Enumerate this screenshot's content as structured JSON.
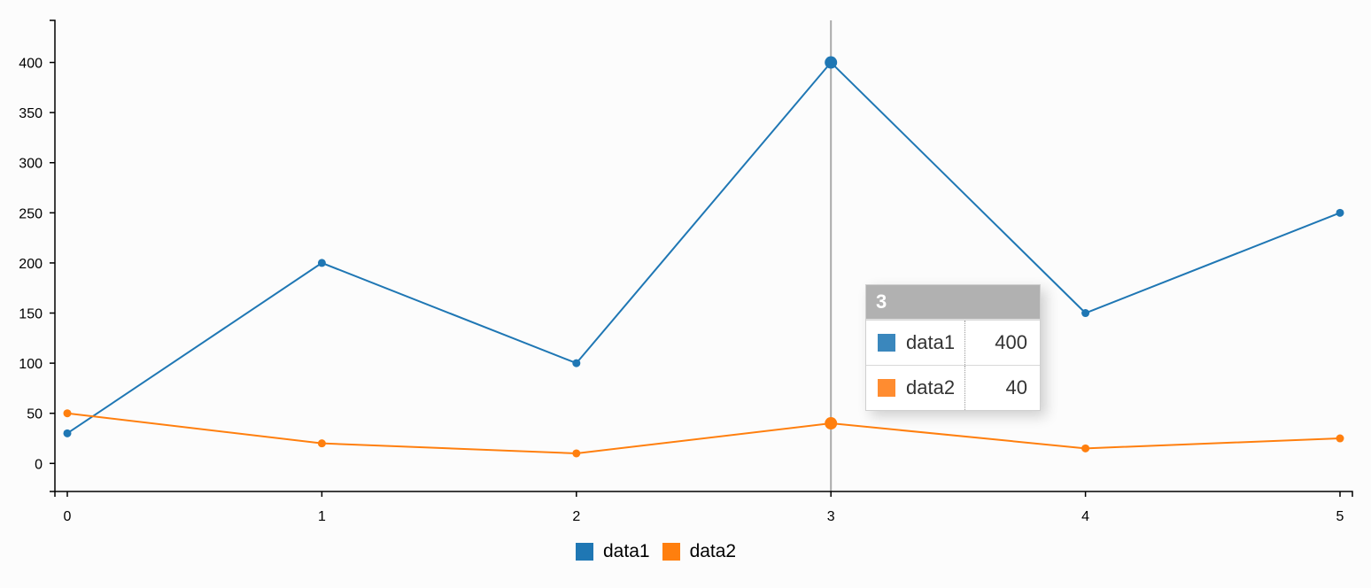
{
  "chart_data": {
    "type": "line",
    "x": [
      0,
      1,
      2,
      3,
      4,
      5
    ],
    "series": [
      {
        "name": "data1",
        "color": "#1f77b4",
        "values": [
          30,
          200,
          100,
          400,
          150,
          250
        ]
      },
      {
        "name": "data2",
        "color": "#ff7f0e",
        "values": [
          50,
          20,
          10,
          40,
          15,
          25
        ]
      }
    ],
    "yticks": [
      0,
      50,
      100,
      150,
      200,
      250,
      300,
      350,
      400
    ],
    "xticks": [
      0,
      1,
      2,
      3,
      4,
      5
    ],
    "ylim": [
      -28,
      442
    ],
    "xlim": [
      -0.05,
      5.05
    ],
    "grid": false,
    "legend": "bottom-center",
    "focus_x": 3
  },
  "tooltip": {
    "title": "3",
    "rows": [
      {
        "name": "data1",
        "value": "400",
        "color": "#3a87bd"
      },
      {
        "name": "data2",
        "value": "40",
        "color": "#ff8c30"
      }
    ]
  },
  "legend": {
    "items": [
      {
        "name": "data1",
        "color": "#1f77b4"
      },
      {
        "name": "data2",
        "color": "#ff7f0e"
      }
    ]
  }
}
